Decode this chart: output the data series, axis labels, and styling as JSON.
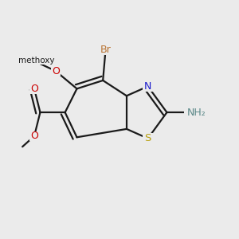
{
  "background_color": "#ebebeb",
  "bond_color": "#1a1a1a",
  "bond_width": 1.6,
  "fig_width": 3.0,
  "fig_height": 3.0,
  "dpi": 100,
  "colors": {
    "S": "#b8a010",
    "N": "#1a1acc",
    "O": "#cc0000",
    "Br": "#b87333",
    "NH2": "#5a8888",
    "C": "#1a1a1a"
  }
}
